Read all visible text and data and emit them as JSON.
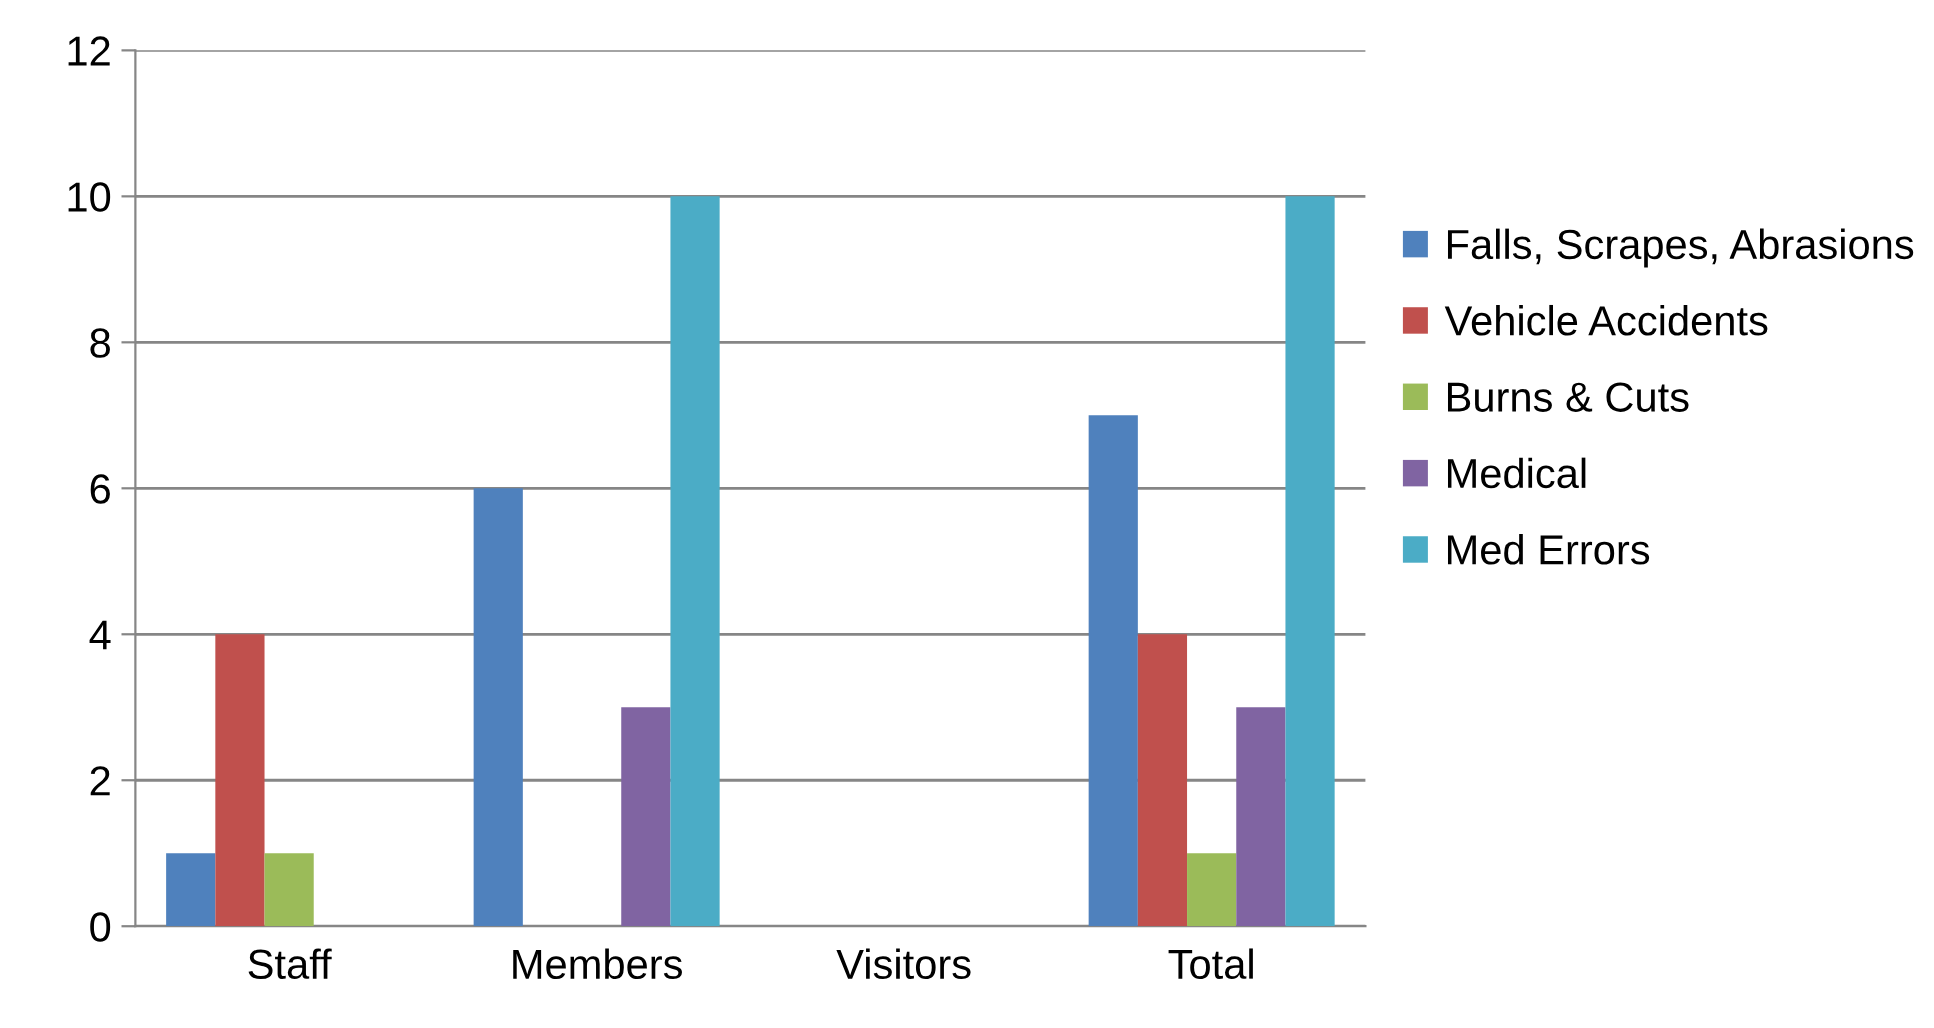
{
  "chart_data": {
    "type": "bar",
    "categories": [
      "Staff",
      "Members",
      "Visitors",
      "Total"
    ],
    "series": [
      {
        "name": "Falls, Scrapes, Abrasions",
        "color": "#4f81bd",
        "values": [
          1,
          6,
          0,
          7
        ]
      },
      {
        "name": "Vehicle Accidents",
        "color": "#c0504d",
        "values": [
          4,
          0,
          0,
          4
        ]
      },
      {
        "name": "Burns & Cuts",
        "color": "#9bbb59",
        "values": [
          1,
          0,
          0,
          1
        ]
      },
      {
        "name": "Medical",
        "color": "#8064a2",
        "values": [
          0,
          3,
          0,
          3
        ]
      },
      {
        "name": "Med Errors",
        "color": "#4bacc6",
        "values": [
          0,
          10,
          0,
          10
        ]
      }
    ],
    "ylim": [
      0,
      12
    ],
    "yticks": [
      0,
      2,
      4,
      6,
      8,
      10,
      12
    ],
    "grid": "y",
    "legend": "right"
  }
}
